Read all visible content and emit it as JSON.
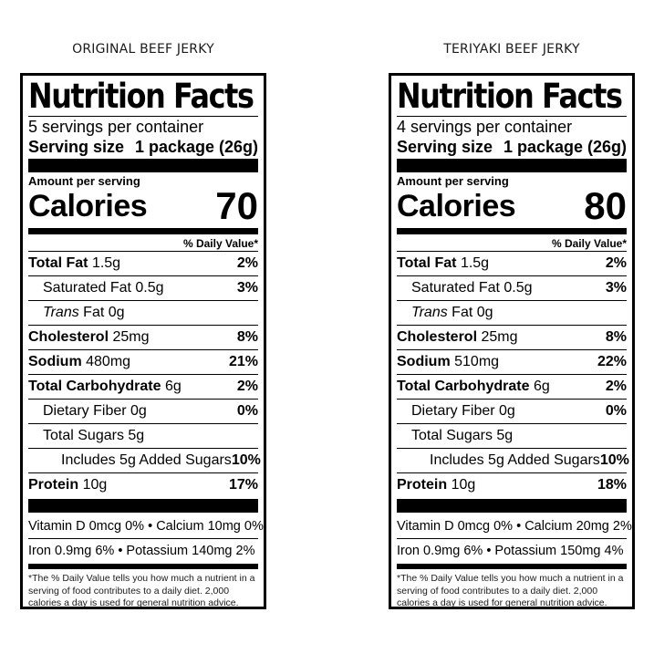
{
  "products": [
    {
      "title": "ORIGINAL BEEF JERKY",
      "label": {
        "heading": "Nutrition Facts",
        "servings_per_container": "5 servings per container",
        "serving_size_label": "Serving size",
        "serving_size_value": "1 package (26g)",
        "amount_per_serving": "Amount per serving",
        "calories_label": "Calories",
        "calories_value": "70",
        "dv_header": "% Daily Value*",
        "total_fat": {
          "name": "Total Fat",
          "amount": "1.5g",
          "dv": "2%"
        },
        "saturated_fat": {
          "name": "Saturated Fat",
          "amount": "0.5g",
          "dv": "3%"
        },
        "trans_fat": {
          "name": "Trans",
          "suffix": "Fat",
          "amount": "0g"
        },
        "cholesterol": {
          "name": "Cholesterol",
          "amount": "25mg",
          "dv": "8%"
        },
        "sodium": {
          "name": "Sodium",
          "amount": "480mg",
          "dv": "21%"
        },
        "total_carbohydrate": {
          "name": "Total Carbohydrate",
          "amount": "6g",
          "dv": "2%"
        },
        "dietary_fiber": {
          "name": "Dietary Fiber",
          "amount": "0g",
          "dv": "0%"
        },
        "total_sugars": {
          "name": "Total Sugars",
          "amount": "5g"
        },
        "added_sugars": {
          "name": "Includes 5g Added Sugars",
          "dv": "10%"
        },
        "protein": {
          "name": "Protein",
          "amount": "10g",
          "dv": "17%"
        },
        "vitamins_line1": "Vitamin D 0mcg 0% • Calcium 10mg 0%",
        "vitamins_line2": "Iron 0.9mg 6% • Potassium 140mg 2%",
        "footnote": "*The % Daily Value tells you how much a nutrient in a serving of food contributes to a daily diet. 2,000 calories a day is used for general nutrition advice."
      }
    },
    {
      "title": "TERIYAKI BEEF JERKY",
      "label": {
        "heading": "Nutrition Facts",
        "servings_per_container": "4 servings per container",
        "serving_size_label": "Serving size",
        "serving_size_value": "1 package (26g)",
        "amount_per_serving": "Amount per serving",
        "calories_label": "Calories",
        "calories_value": "80",
        "dv_header": "% Daily Value*",
        "total_fat": {
          "name": "Total Fat",
          "amount": "1.5g",
          "dv": "2%"
        },
        "saturated_fat": {
          "name": "Saturated Fat",
          "amount": "0.5g",
          "dv": "3%"
        },
        "trans_fat": {
          "name": "Trans",
          "suffix": "Fat",
          "amount": "0g"
        },
        "cholesterol": {
          "name": "Cholesterol",
          "amount": "25mg",
          "dv": "8%"
        },
        "sodium": {
          "name": "Sodium",
          "amount": "510mg",
          "dv": "22%"
        },
        "total_carbohydrate": {
          "name": "Total Carbohydrate",
          "amount": "6g",
          "dv": "2%"
        },
        "dietary_fiber": {
          "name": "Dietary Fiber",
          "amount": "0g",
          "dv": "0%"
        },
        "total_sugars": {
          "name": "Total Sugars",
          "amount": "5g"
        },
        "added_sugars": {
          "name": "Includes 5g Added Sugars",
          "dv": "10%"
        },
        "protein": {
          "name": "Protein",
          "amount": "10g",
          "dv": "18%"
        },
        "vitamins_line1": "Vitamin D 0mcg 0% • Calcium 20mg 2%",
        "vitamins_line2": "Iron 0.9mg 6% • Potassium 150mg 4%",
        "footnote": "*The % Daily Value tells you how much a nutrient in a serving of food contributes to a daily diet. 2,000 calories a day is used for general nutrition advice."
      }
    }
  ]
}
